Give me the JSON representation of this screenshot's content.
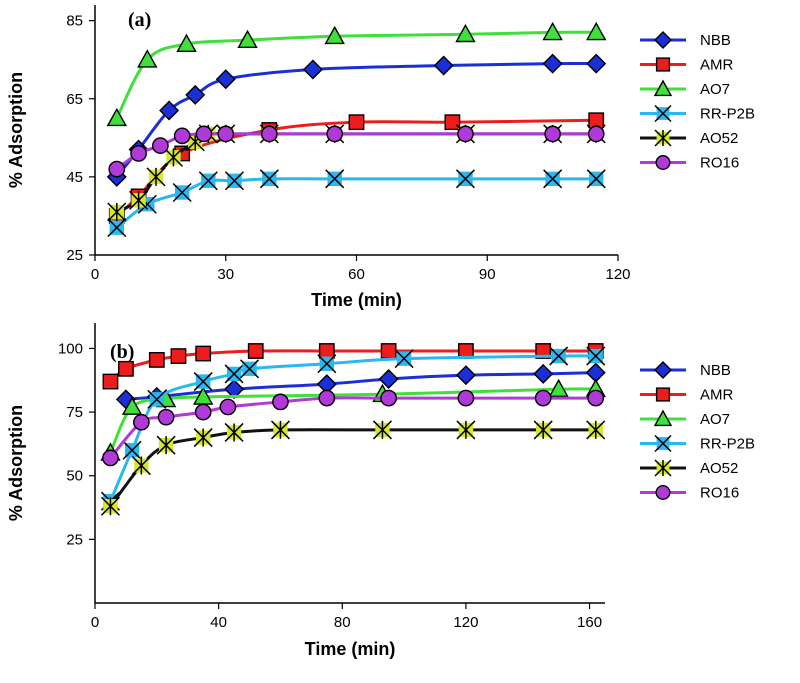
{
  "colors": {
    "NBB": "#1a2fd6",
    "AMR": "#ee1c1c",
    "AO7": "#3fe03a",
    "RR-P2B": "#2ab8f0",
    "AO52": "#111111",
    "RO16": "#b03ad8",
    "AO52_fill": "#d7e82a"
  },
  "chart_data": [
    {
      "type": "line",
      "panel_label": "(a)",
      "xlabel": "Time (min)",
      "ylabel": "% Adsorption",
      "xlim": [
        0,
        120
      ],
      "ylim": [
        25,
        89
      ],
      "xticks": [
        0,
        30,
        60,
        90,
        120
      ],
      "yticks": [
        25,
        45,
        65,
        85
      ],
      "legend_position": "right",
      "series": [
        {
          "name": "NBB",
          "marker": "diamond",
          "x": [
            5,
            10,
            17,
            23,
            30,
            50,
            80,
            105,
            115
          ],
          "y": [
            45,
            52,
            62,
            66,
            70,
            72.5,
            73.5,
            74,
            74
          ]
        },
        {
          "name": "AMR",
          "marker": "square",
          "x": [
            5,
            10,
            20,
            40,
            60,
            82,
            115
          ],
          "y": [
            35,
            40,
            51,
            57,
            59,
            59,
            59.5
          ]
        },
        {
          "name": "AO7",
          "marker": "triangle",
          "x": [
            5,
            12,
            21,
            35,
            55,
            85,
            105,
            115
          ],
          "y": [
            60,
            75,
            79,
            80,
            81,
            81.5,
            82,
            82
          ]
        },
        {
          "name": "RR-P2B",
          "marker": "x",
          "x": [
            5,
            12,
            20,
            26,
            32,
            40,
            55,
            85,
            105,
            115
          ],
          "y": [
            32,
            38,
            41,
            44,
            44,
            44.5,
            44.5,
            44.5,
            44.5,
            44.5
          ]
        },
        {
          "name": "AO52",
          "marker": "star",
          "x": [
            5,
            10,
            14,
            18,
            23,
            26,
            30,
            40,
            55,
            85,
            105,
            115
          ],
          "y": [
            36,
            39,
            45,
            50,
            54,
            56,
            56,
            56,
            56,
            56,
            56,
            56
          ]
        },
        {
          "name": "RO16",
          "marker": "circle",
          "x": [
            5,
            10,
            15,
            20,
            25,
            30,
            40,
            55,
            85,
            105,
            115
          ],
          "y": [
            47,
            51,
            53,
            55.5,
            56,
            56,
            56,
            56,
            56,
            56,
            56
          ]
        }
      ]
    },
    {
      "type": "line",
      "panel_label": "(b)",
      "xlabel": "Time (min)",
      "ylabel": "% Adsorption",
      "xlim": [
        0,
        165
      ],
      "ylim": [
        0,
        110
      ],
      "xticks": [
        0,
        40,
        80,
        120,
        160
      ],
      "yticks": [
        25,
        50,
        75,
        100
      ],
      "legend_position": "right",
      "series": [
        {
          "name": "NBB",
          "marker": "diamond",
          "x": [
            10,
            20,
            45,
            75,
            95,
            120,
            145,
            162
          ],
          "y": [
            80,
            81,
            84,
            86,
            88,
            89.5,
            90,
            90.5
          ]
        },
        {
          "name": "AMR",
          "marker": "square",
          "x": [
            5,
            10,
            20,
            27,
            35,
            52,
            75,
            95,
            120,
            145,
            162
          ],
          "y": [
            87,
            92,
            95.5,
            97,
            98,
            99,
            99,
            99,
            99,
            99,
            99
          ]
        },
        {
          "name": "AO7",
          "marker": "triangle",
          "x": [
            5,
            12,
            23,
            35,
            93,
            150,
            162
          ],
          "y": [
            59,
            77,
            80,
            81,
            82,
            84,
            84
          ]
        },
        {
          "name": "RR-P2B",
          "marker": "x",
          "x": [
            5,
            12,
            20,
            35,
            45,
            50,
            75,
            100,
            150,
            162
          ],
          "y": [
            40,
            60,
            80,
            87,
            90,
            92,
            94,
            96,
            97,
            97
          ]
        },
        {
          "name": "AO52",
          "marker": "star",
          "x": [
            5,
            15,
            23,
            35,
            45,
            60,
            93,
            120,
            145,
            162
          ],
          "y": [
            38,
            54,
            62,
            65,
            67,
            68,
            68,
            68,
            68,
            68
          ]
        },
        {
          "name": "RO16",
          "marker": "circle",
          "x": [
            5,
            15,
            23,
            35,
            43,
            60,
            75,
            95,
            120,
            145,
            162
          ],
          "y": [
            57,
            71,
            73,
            75,
            77,
            79,
            80.5,
            80.5,
            80.5,
            80.5,
            80.5
          ]
        }
      ]
    }
  ]
}
